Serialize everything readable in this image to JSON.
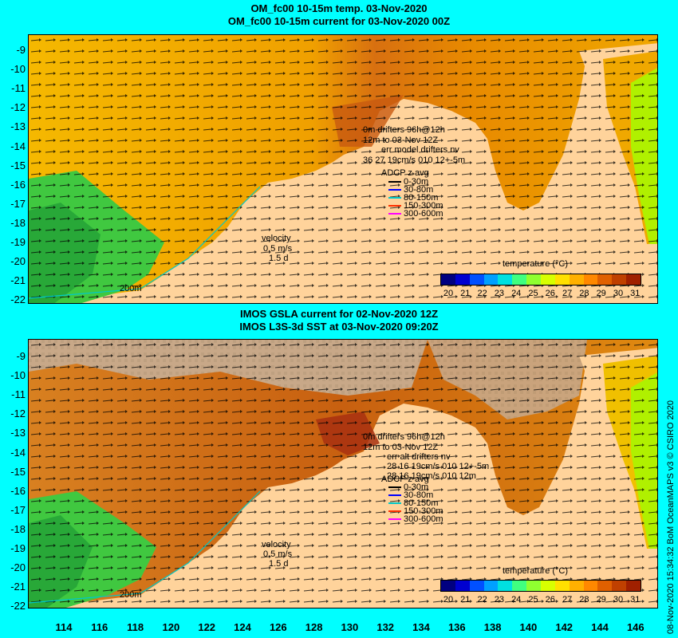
{
  "top": {
    "title1": "OM_fc00 10-15m temp. 03-Nov-2020",
    "title2": "OM_fc00 10-15m current for 03-Nov-2020 00Z",
    "drifter_line1": "0m  drifters 96h@12h",
    "drifter_line2": "12m to 03-Nov 12Z",
    "drifter_line3": "err model drifters nv",
    "drifter_line4": "36 27 19cm/s 010 12+-5m",
    "adcp_title": "ADCP z avg",
    "adcp_items": [
      "0-30m",
      "30-80m",
      "80-150m",
      "150-300m",
      "300-600m"
    ],
    "velocity": "velocity",
    "velocity_scale": "0.5 m/s",
    "velocity_days": "1.5 d",
    "isobath": "200m",
    "cbar_title": "temperature (°C)"
  },
  "bottom": {
    "title1": "IMOS GSLA current for 02-Nov-2020 12Z",
    "title2": "IMOS L3S-3d SST at 03-Nov-2020 09:20Z",
    "drifter_line1": "0m  drifters 96h@12h",
    "drifter_line2": "12m to 03-Nov 12Z",
    "drifter_line3": "err alt drifters nv",
    "drifter_line4": "28 16 19cm/s 010 12+-5m",
    "drifter_line5": "28 16 19cm/s 010 12m",
    "adcp_title": "ADCP z avg",
    "adcp_items": [
      "0-30m",
      "30-80m",
      "80-150m",
      "150-300m",
      "300-600m"
    ],
    "velocity": "velocity",
    "velocity_scale": "0.5 m/s",
    "velocity_days": "1.5 d",
    "isobath": "200m",
    "cbar_title": "temperature (°C)"
  },
  "adcp_colors": [
    "#000000",
    "#0000ff",
    "#00c8c8",
    "#ff3000",
    "#ff00ff"
  ],
  "cbar_colors": [
    "#000080",
    "#0000d0",
    "#0050ff",
    "#00a0ff",
    "#00e0e0",
    "#40ff80",
    "#90ff30",
    "#d8ff00",
    "#ffe000",
    "#ffb000",
    "#ff8800",
    "#e06000",
    "#c04000",
    "#a02000"
  ],
  "cbar_labels": [
    "20",
    "21",
    "22",
    "23",
    "24",
    "25",
    "26",
    "27",
    "28",
    "29",
    "30",
    "31"
  ],
  "y_labels": [
    "-9",
    "-10",
    "-11",
    "-12",
    "-13",
    "-14",
    "-15",
    "-16",
    "-17",
    "-18",
    "-19",
    "-20",
    "-21",
    "-22"
  ],
  "x_labels": [
    "114",
    "116",
    "118",
    "120",
    "122",
    "124",
    "126",
    "128",
    "130",
    "132",
    "134",
    "136",
    "138",
    "140",
    "142",
    "144",
    "146"
  ],
  "credit": "08-Nov-2020 15:34:32 BoM OceanMAPS v3      © CSIRO 2020"
}
